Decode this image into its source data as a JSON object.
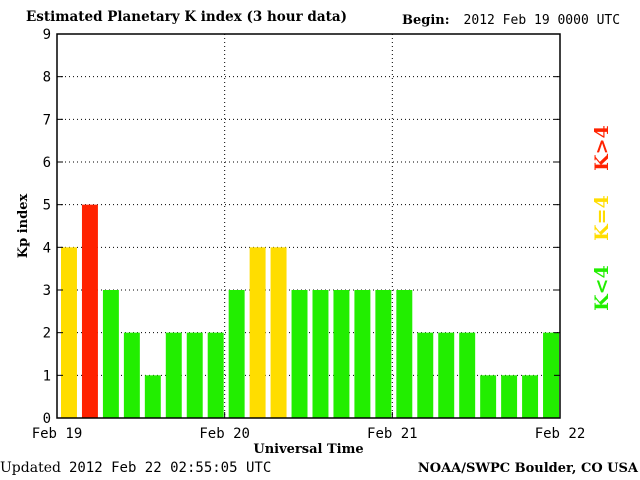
{
  "header": {
    "title": "Estimated Planetary K index (3 hour data)",
    "begin_label": "Begin:",
    "begin_value": "2012 Feb 19 0000 UTC"
  },
  "footer": {
    "updated_label": "Updated",
    "updated_value": "2012 Feb 22 02:55:05 UTC",
    "credit": "NOAA/SWPC Boulder, CO USA"
  },
  "colors": {
    "below": "#22ee00",
    "equal": "#ffdd00",
    "above": "#ff2200"
  },
  "chart_data": {
    "type": "bar",
    "title": "Estimated Planetary K index (3 hour data)",
    "xlabel": "Universal Time",
    "ylabel": "Kp index",
    "ylim": [
      0,
      9
    ],
    "yticks": [
      "0",
      "1",
      "2",
      "3",
      "4",
      "5",
      "6",
      "7",
      "8",
      "9"
    ],
    "xtick_labels": [
      "Feb 19",
      "Feb 20",
      "Feb 21",
      "Feb 22"
    ],
    "interval_hours": 3,
    "grid": true,
    "values": [
      4,
      5,
      3,
      2,
      1,
      2,
      2,
      2,
      3,
      4,
      4,
      3,
      3,
      3,
      3,
      3,
      3,
      2,
      2,
      2,
      1,
      1,
      1,
      2
    ],
    "legend": [
      {
        "label": "K<4",
        "color": "#22ee00"
      },
      {
        "label": "K=4",
        "color": "#ffdd00"
      },
      {
        "label": "K>4",
        "color": "#ff2200"
      }
    ]
  }
}
